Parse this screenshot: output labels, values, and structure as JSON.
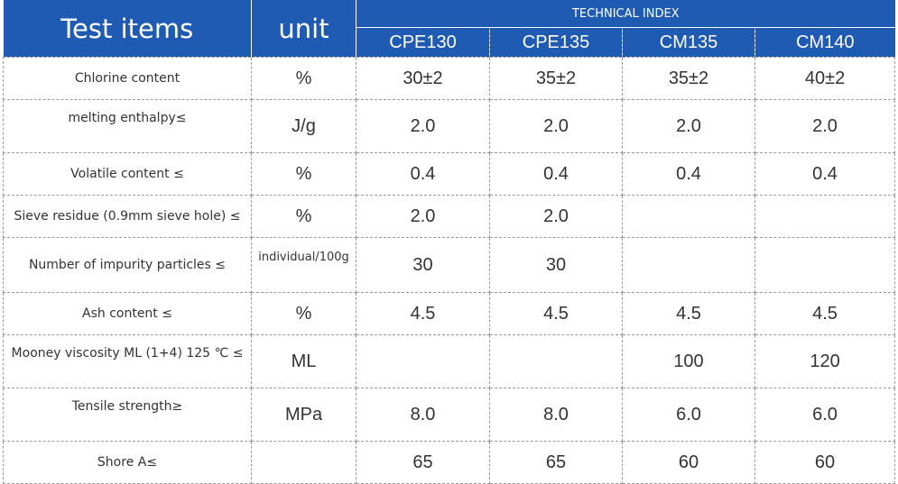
{
  "header": {
    "test_items": "Test items",
    "unit": "unit",
    "technical_index": "TECHNICAL INDEX",
    "products": [
      "CPE130",
      "CPE135",
      "CM135",
      "CM140"
    ]
  },
  "rows": [
    {
      "item": "Chlorine content",
      "unit": "%",
      "values": [
        "30±2",
        "35±2",
        "35±2",
        "40±2"
      ]
    },
    {
      "item": "melting enthalpy≤",
      "unit": "J/g",
      "values": [
        "2.0",
        "2.0",
        "2.0",
        "2.0"
      ]
    },
    {
      "item": "Volatile content ≤",
      "unit": "%",
      "values": [
        "0.4",
        "0.4",
        "0.4",
        "0.4"
      ]
    },
    {
      "item": "Sieve residue (0.9mm sieve hole) ≤",
      "unit": "%",
      "values": [
        "2.0",
        "2.0",
        "",
        ""
      ]
    },
    {
      "item": "Number of impurity particles ≤",
      "unit": "individual/100g",
      "values": [
        "30",
        "30",
        "",
        ""
      ]
    },
    {
      "item": "Ash content ≤",
      "unit": "%",
      "values": [
        "4.5",
        "4.5",
        "4.5",
        "4.5"
      ]
    },
    {
      "item": "Mooney viscosity ML (1+4) 125 ℃ ≤",
      "unit": "ML",
      "values": [
        "",
        "",
        "100",
        "120"
      ]
    },
    {
      "item": "Tensile strength≥",
      "unit": "MPa",
      "values": [
        "8.0",
        "8.0",
        "6.0",
        "6.0"
      ]
    },
    {
      "item": "Shore A≤",
      "unit": "",
      "values": [
        "65",
        "65",
        "60",
        "60"
      ]
    }
  ]
}
